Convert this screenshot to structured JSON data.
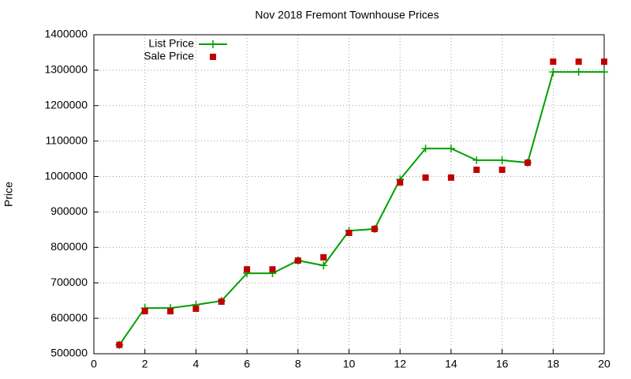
{
  "chart_data": {
    "type": "line",
    "title": "Nov 2018 Fremont Townhouse Prices",
    "ylabel": "Price",
    "x": [
      1,
      2,
      3,
      4,
      5,
      6,
      7,
      8,
      9,
      10,
      11,
      12,
      13,
      14,
      15,
      16,
      17,
      18,
      19,
      20
    ],
    "series": [
      {
        "name": "List Price",
        "color": "#00a000",
        "style": "linespoints",
        "values": [
          525000,
          629000,
          629000,
          638000,
          649000,
          727000,
          727000,
          763000,
          749000,
          847000,
          852000,
          992000,
          1079000,
          1079000,
          1046000,
          1046000,
          1039000,
          1295000,
          1295000,
          1295000
        ]
      },
      {
        "name": "Sale Price",
        "color": "#c00000",
        "style": "points",
        "values": [
          525000,
          620000,
          620000,
          627000,
          647000,
          738000,
          738000,
          763000,
          772000,
          841000,
          852000,
          983000,
          997000,
          997000,
          1019000,
          1019000,
          1039000,
          1324000,
          1324000,
          1324000
        ]
      }
    ],
    "xlim": [
      0,
      20
    ],
    "xticks": [
      0,
      2,
      4,
      6,
      8,
      10,
      12,
      14,
      16,
      18,
      20
    ],
    "ylim": [
      500000,
      1400000
    ],
    "yticks": [
      500000,
      600000,
      700000,
      800000,
      900000,
      1000000,
      1100000,
      1200000,
      1300000,
      1400000
    ],
    "grid": true,
    "legend": "top-left"
  }
}
